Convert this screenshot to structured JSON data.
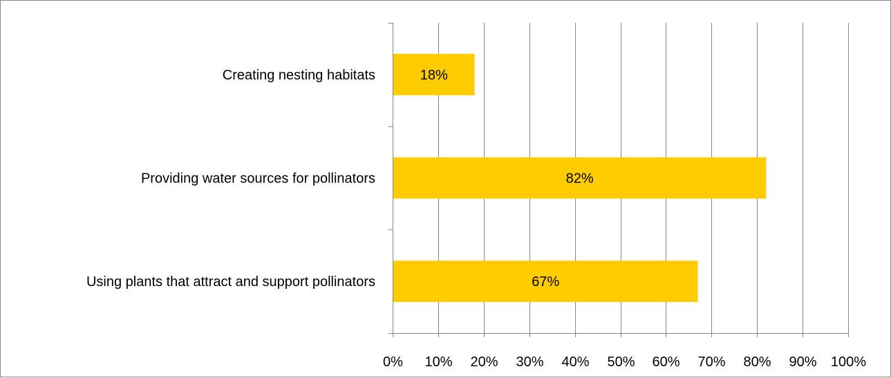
{
  "chart_data": {
    "type": "bar",
    "orientation": "horizontal",
    "categories": [
      "Creating nesting habitats",
      "Providing water sources for pollinators",
      "Using plants that attract and support pollinators"
    ],
    "values": [
      18,
      82,
      67
    ],
    "data_labels": [
      "18%",
      "82%",
      "67%"
    ],
    "xlim": [
      0,
      100
    ],
    "x_ticks": [
      "0%",
      "10%",
      "20%",
      "30%",
      "40%",
      "50%",
      "60%",
      "70%",
      "80%",
      "90%",
      "100%"
    ],
    "grid": true,
    "legend": "none",
    "bar_color": "#FFCC00",
    "grid_color": "#868686"
  }
}
